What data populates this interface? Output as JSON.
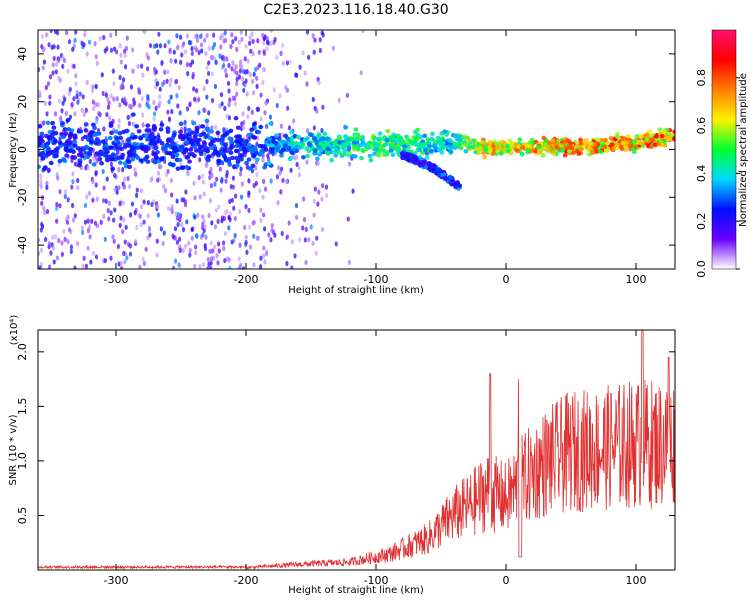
{
  "title": "C2E3.2023.116.18.40.G30",
  "chart_data": [
    {
      "type": "heatmap",
      "xlabel": "Height of straight line (km)",
      "ylabel": "Frequency (Hz)",
      "xlim": [
        -360,
        130
      ],
      "ylim": [
        -50,
        50
      ],
      "xticks": [
        -300,
        -200,
        -100,
        0,
        100
      ],
      "yticks": [
        -40,
        -20,
        0,
        20,
        40
      ],
      "colorbar": {
        "label": "Normalized spectral amplitude",
        "range": [
          0,
          1
        ],
        "ticks": [
          "0.0",
          "0.2",
          "0.4",
          "0.6",
          "0.8"
        ],
        "colormap": [
          "#ffffff",
          "#6a00ff",
          "#0010ff",
          "#00d8ff",
          "#00ff30",
          "#fff000",
          "#ff8000",
          "#ff0000",
          "#ff1070"
        ]
      },
      "ridge": [
        {
          "x": -350,
          "f": 2,
          "amp": 0.3
        },
        {
          "x": -200,
          "f": 1,
          "amp": 0.3
        },
        {
          "x": -150,
          "f": 2,
          "amp": 0.45
        },
        {
          "x": -100,
          "f": 2,
          "amp": 0.55
        },
        {
          "x": -60,
          "f": 2,
          "amp": 0.5
        },
        {
          "x": -40,
          "f": 4,
          "amp": 0.45
        },
        {
          "x": -20,
          "f": 1,
          "amp": 0.75
        },
        {
          "x": 0,
          "f": 1,
          "amp": 0.7
        },
        {
          "x": 50,
          "f": 1,
          "amp": 0.8
        },
        {
          "x": 100,
          "f": 3,
          "amp": 0.8
        },
        {
          "x": 130,
          "f": 6,
          "amp": 0.85
        }
      ],
      "branch": [
        {
          "x": -80,
          "f": -2
        },
        {
          "x": -55,
          "f": -8
        },
        {
          "x": -35,
          "f": -16
        }
      ]
    },
    {
      "type": "line",
      "xlabel": "Height of straight line (km)",
      "ylabel": "SNR (10 * v/v)",
      "yscale_label": "(x10⁴)",
      "xlim": [
        -360,
        130
      ],
      "ylim": [
        0,
        2.2
      ],
      "xticks": [
        -300,
        -200,
        -100,
        0,
        100
      ],
      "yticks": [
        0.5,
        1.0,
        1.5,
        2.0
      ],
      "ytick_labels": [
        "0.5",
        "1.0",
        "1.5",
        "2.0"
      ],
      "color": "#e03030",
      "envelope": [
        {
          "x": -360,
          "y": 0.03
        },
        {
          "x": -200,
          "y": 0.03
        },
        {
          "x": -160,
          "y": 0.07
        },
        {
          "x": -120,
          "y": 0.1
        },
        {
          "x": -90,
          "y": 0.2
        },
        {
          "x": -60,
          "y": 0.4
        },
        {
          "x": -40,
          "y": 0.7
        },
        {
          "x": -25,
          "y": 0.85
        },
        {
          "x": -15,
          "y": 1.0
        },
        {
          "x": 0,
          "y": 0.9
        },
        {
          "x": 10,
          "y": 1.1
        },
        {
          "x": 30,
          "y": 1.35
        },
        {
          "x": 50,
          "y": 1.5
        },
        {
          "x": 80,
          "y": 1.55
        },
        {
          "x": 100,
          "y": 1.6
        },
        {
          "x": 130,
          "y": 1.6
        }
      ],
      "spikes": [
        {
          "x": -12,
          "y": 1.8
        },
        {
          "x": 10,
          "y": 1.75
        },
        {
          "x": 105,
          "y": 2.2
        },
        {
          "x": 125,
          "y": 1.95
        }
      ],
      "dips": [
        {
          "x": 11,
          "y": 0.12
        }
      ]
    }
  ]
}
